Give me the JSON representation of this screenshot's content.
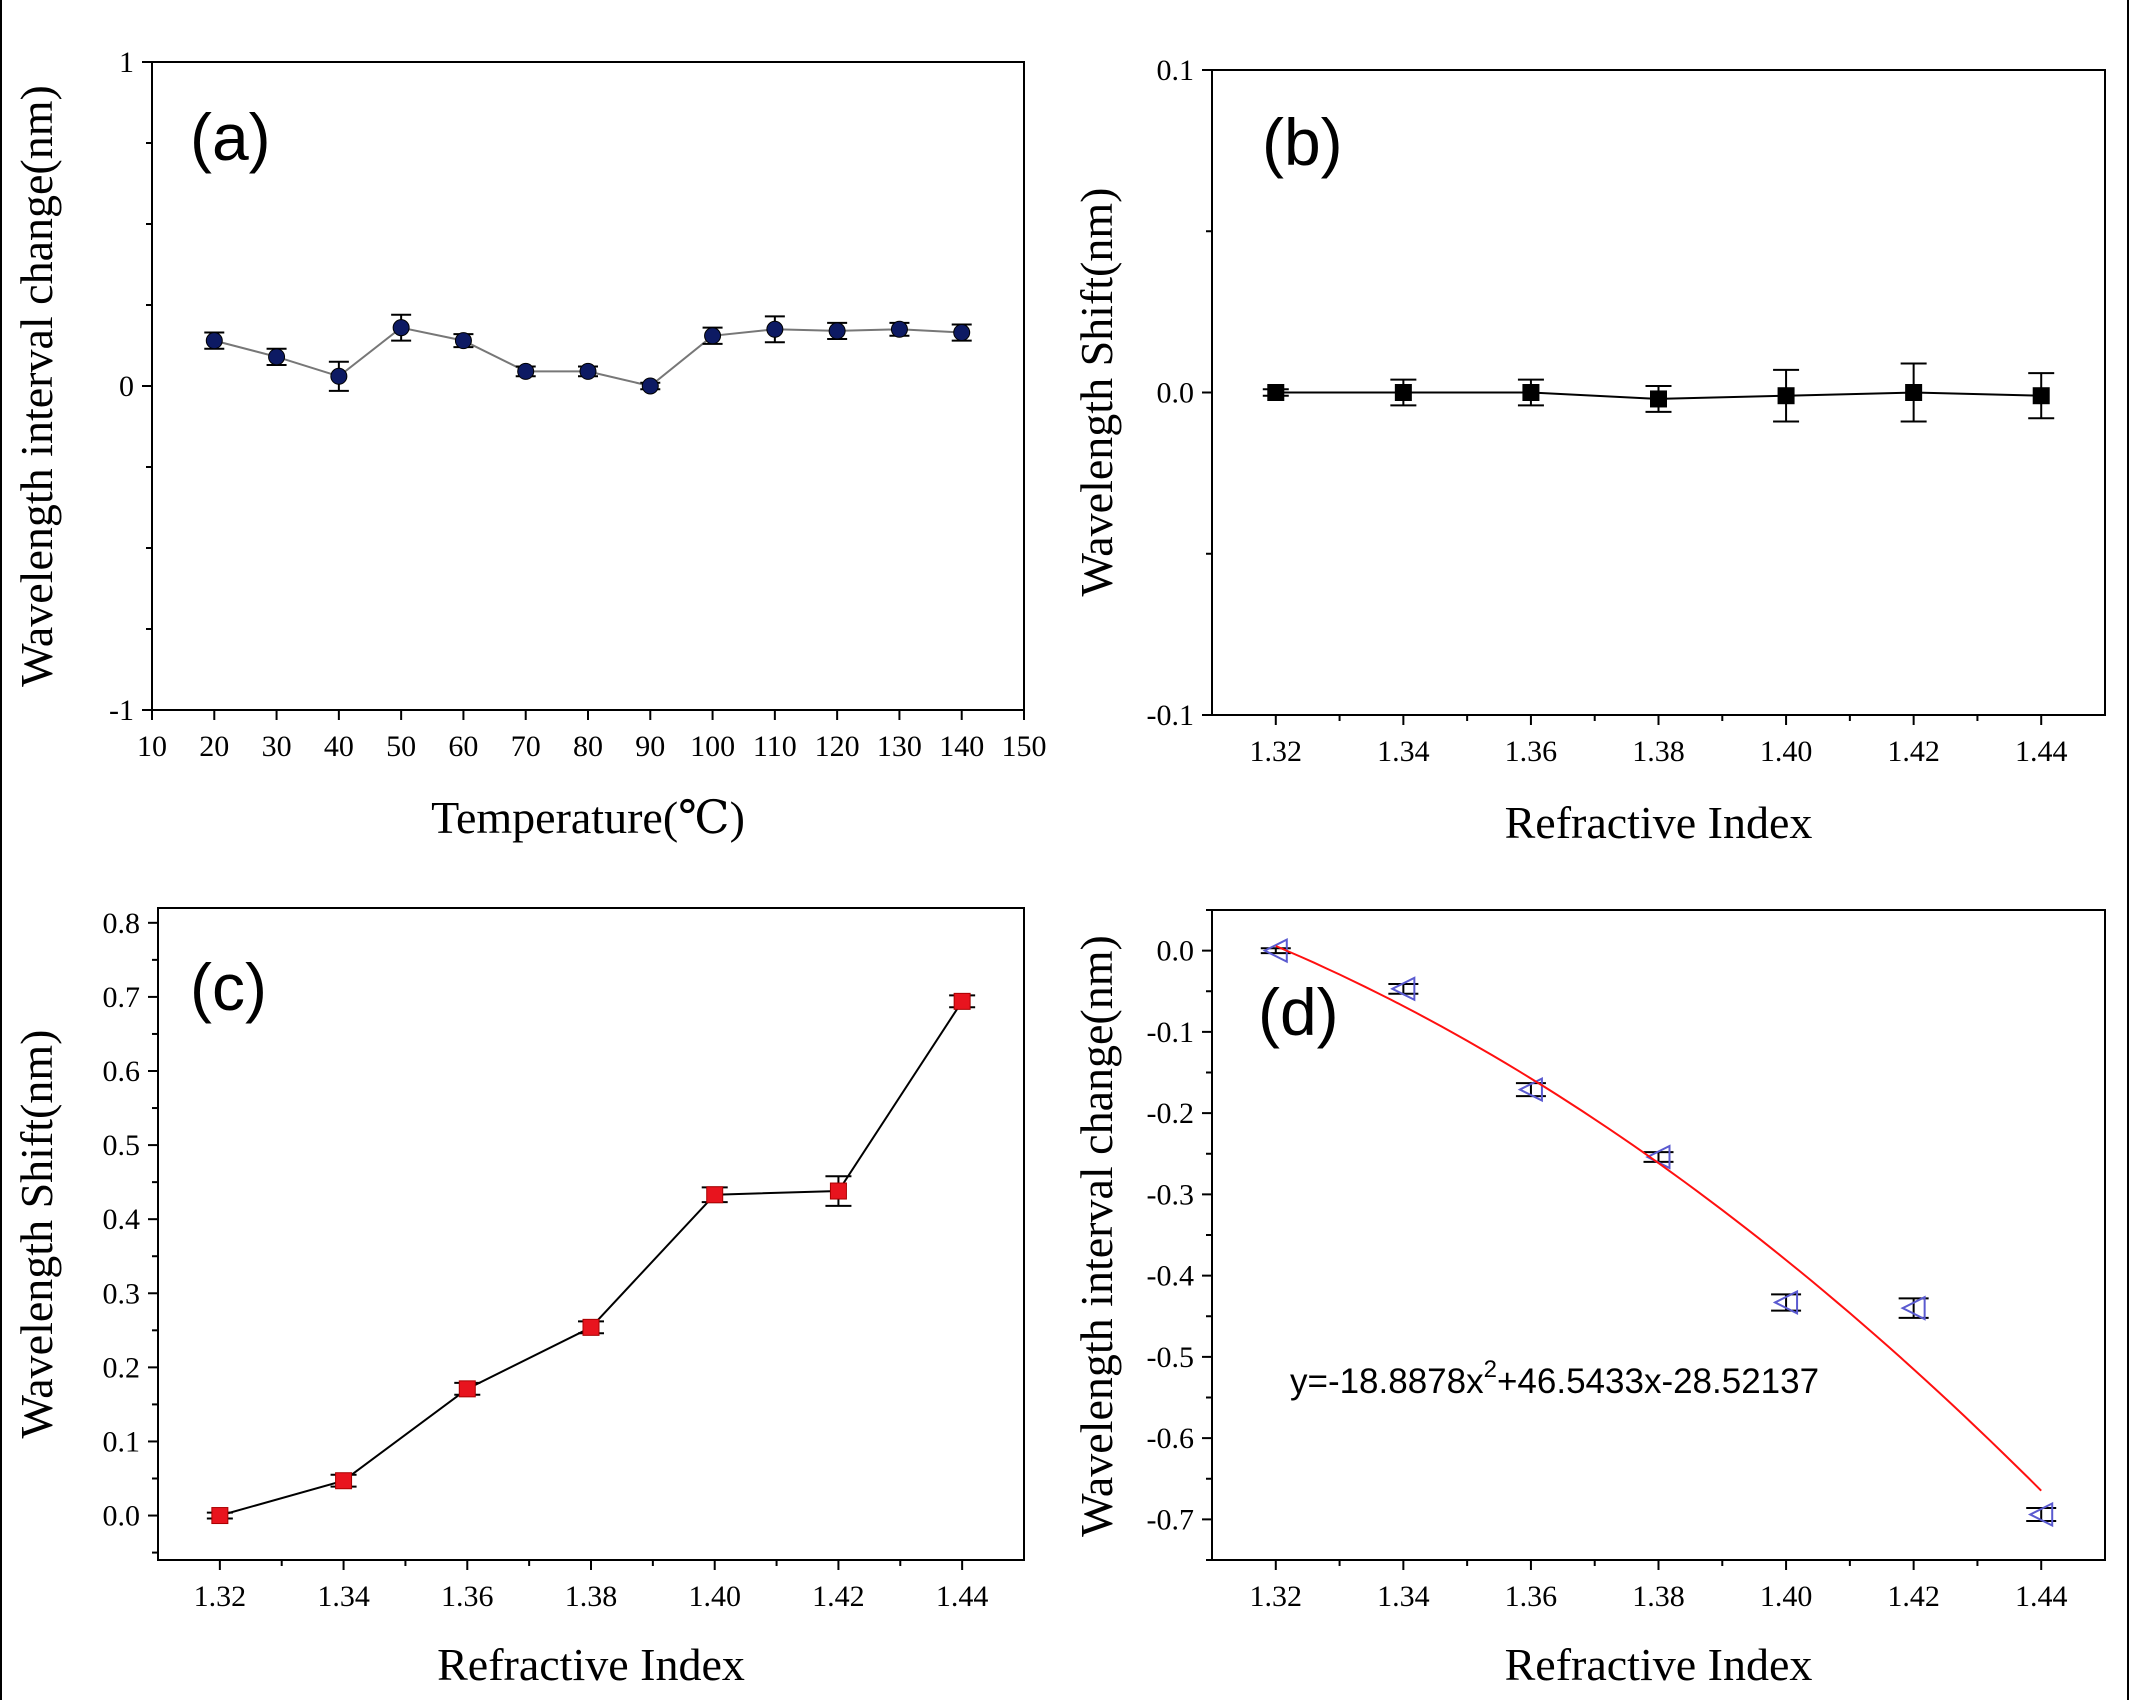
{
  "chart_data": [
    {
      "panel": "(a)",
      "type": "scatter",
      "series": [
        {
          "name": "wavelength interval change",
          "marker": "circle",
          "color": "#0d1a63",
          "x": [
            20,
            30,
            40,
            50,
            60,
            70,
            80,
            90,
            100,
            110,
            120,
            130,
            140
          ],
          "y": [
            0.14,
            0.09,
            0.03,
            0.18,
            0.14,
            0.045,
            0.045,
            0.0,
            0.155,
            0.175,
            0.17,
            0.175,
            0.165
          ],
          "err": [
            0.025,
            0.025,
            0.045,
            0.04,
            0.02,
            0.015,
            0.015,
            0.01,
            0.025,
            0.04,
            0.025,
            0.02,
            0.025
          ]
        }
      ],
      "xlabel": "Temperature(℃)",
      "ylabel": "Wavelength interval change(nm)",
      "xlim": [
        10,
        150
      ],
      "ylim": [
        -1,
        1
      ],
      "xticks": [
        "10",
        "20",
        "30",
        "40",
        "50",
        "60",
        "70",
        "80",
        "90",
        "100",
        "110",
        "120",
        "130",
        "140",
        "150"
      ],
      "yticks": [
        "-1",
        "0",
        "1"
      ]
    },
    {
      "panel": "(b)",
      "type": "scatter",
      "series": [
        {
          "name": "wavelength shift",
          "marker": "square",
          "color": "#000000",
          "x": [
            1.32,
            1.34,
            1.36,
            1.38,
            1.4,
            1.42,
            1.44
          ],
          "y": [
            0.0,
            0.0,
            0.0,
            -0.002,
            -0.001,
            0.0,
            -0.001
          ],
          "err": [
            0.001,
            0.004,
            0.004,
            0.004,
            0.008,
            0.009,
            0.007
          ]
        }
      ],
      "xlabel": "Refractive Index",
      "ylabel": "Wavelength Shift(nm)",
      "xlim": [
        1.31,
        1.45
      ],
      "ylim": [
        -0.1,
        0.1
      ],
      "xticks": [
        "1.32",
        "1.34",
        "1.36",
        "1.38",
        "1.40",
        "1.42",
        "1.44"
      ],
      "yticks": [
        "-0.1",
        "0.0",
        "0.1"
      ]
    },
    {
      "panel": "(c)",
      "type": "scatter",
      "series": [
        {
          "name": "wavelength shift",
          "marker": "square",
          "color": "#e8141e",
          "x": [
            1.32,
            1.34,
            1.36,
            1.38,
            1.4,
            1.42,
            1.44
          ],
          "y": [
            0.0,
            0.047,
            0.171,
            0.254,
            0.433,
            0.438,
            0.694
          ],
          "err": [
            0.004,
            0.008,
            0.008,
            0.008,
            0.01,
            0.02,
            0.008
          ]
        }
      ],
      "xlabel": "Refractive Index",
      "ylabel": "Wavelength Shift(nm)",
      "xlim": [
        1.31,
        1.45
      ],
      "ylim": [
        -0.06,
        0.82
      ],
      "xticks": [
        "1.32",
        "1.34",
        "1.36",
        "1.38",
        "1.40",
        "1.42",
        "1.44"
      ],
      "yticks": [
        "0.0",
        "0.1",
        "0.2",
        "0.3",
        "0.4",
        "0.5",
        "0.6",
        "0.7",
        "0.8"
      ]
    },
    {
      "panel": "(d)",
      "type": "scatter",
      "series": [
        {
          "name": "wavelength interval change",
          "marker": "triangle-left",
          "color": "#5a5ad0",
          "x": [
            1.32,
            1.34,
            1.36,
            1.38,
            1.4,
            1.42,
            1.44
          ],
          "y": [
            0.0,
            -0.047,
            -0.171,
            -0.254,
            -0.433,
            -0.44,
            -0.694
          ],
          "err": [
            0.003,
            0.006,
            0.008,
            0.006,
            0.01,
            0.012,
            0.008
          ]
        },
        {
          "name": "fit",
          "type": "line",
          "color": "#ff1010",
          "coefficients": [
            -18.8878,
            46.5433,
            -28.52137
          ],
          "x_range": [
            1.32,
            1.44
          ]
        }
      ],
      "annotation_prefix": "y=-18.8878x",
      "annotation_exp": "2",
      "annotation_suffix": "+46.5433x-28.52137",
      "xlabel": "Refractive Index",
      "ylabel": "Wavelength interval change(nm)",
      "xlim": [
        1.31,
        1.45
      ],
      "ylim": [
        -0.75,
        0.05
      ],
      "xticks": [
        "1.32",
        "1.34",
        "1.36",
        "1.38",
        "1.40",
        "1.42",
        "1.44"
      ],
      "yticks": [
        "0.0",
        "-0.1",
        "-0.2",
        "-0.3",
        "-0.4",
        "-0.5",
        "-0.6",
        "-0.7"
      ]
    }
  ]
}
